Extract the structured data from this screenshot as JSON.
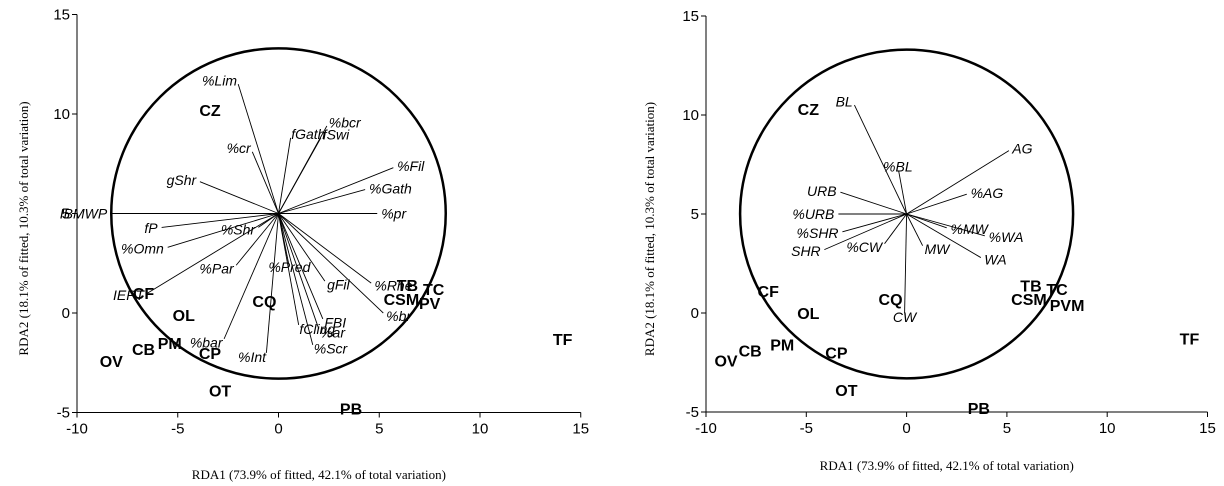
{
  "chart_data": [
    {
      "type": "scatter",
      "xlabel": "RDA1 (73.9% of fitted, 42.1% of total variation)",
      "ylabel": "RDA2 (18.1% of fitted, 10.3% of total variation)",
      "xlim": [
        -10,
        15
      ],
      "ylim": [
        -5,
        15
      ],
      "xticks": [
        "-10",
        "-5",
        "0",
        "5",
        "10",
        "15"
      ],
      "yticks": [
        "-5",
        "0",
        "5",
        "10",
        "15"
      ],
      "circle": {
        "cx": 0,
        "cy": 5,
        "r": 8.3
      },
      "sites": [
        {
          "label": "CZ",
          "x": -3.4,
          "y": 10.2
        },
        {
          "label": "CF",
          "x": -6.7,
          "y": 1.0
        },
        {
          "label": "OL",
          "x": -4.7,
          "y": -0.1
        },
        {
          "label": "CQ",
          "x": -0.7,
          "y": 0.6
        },
        {
          "label": "CB",
          "x": -6.7,
          "y": -1.8
        },
        {
          "label": "PM",
          "x": -5.4,
          "y": -1.5
        },
        {
          "label": "OV",
          "x": -8.3,
          "y": -2.4
        },
        {
          "label": "CP",
          "x": -3.4,
          "y": -2.0
        },
        {
          "label": "OT",
          "x": -2.9,
          "y": -3.9
        },
        {
          "label": "PB",
          "x": 3.6,
          "y": -4.8
        },
        {
          "label": "TB",
          "x": 6.4,
          "y": 1.4
        },
        {
          "label": "TC",
          "x": 7.7,
          "y": 1.2
        },
        {
          "label": "CSM",
          "x": 6.1,
          "y": 0.7
        },
        {
          "label": "PV",
          "x": 7.5,
          "y": 0.5
        },
        {
          "label": "TF",
          "x": 14.1,
          "y": -1.3
        }
      ],
      "vectors": [
        {
          "label": "%Lim",
          "x": -2.0,
          "y": 11.5
        },
        {
          "label": "%bcr",
          "x": 2.4,
          "y": 9.4
        },
        {
          "label": "fGath",
          "x": 0.6,
          "y": 8.8
        },
        {
          "label": "fSwi",
          "x": 2.1,
          "y": 8.8
        },
        {
          "label": "%cr",
          "x": -1.3,
          "y": 8.1
        },
        {
          "label": "%Fil",
          "x": 5.7,
          "y": 7.3
        },
        {
          "label": "%Gath",
          "x": 4.3,
          "y": 6.2
        },
        {
          "label": "gShr",
          "x": -3.9,
          "y": 6.6
        },
        {
          "label": "IBMWP",
          "x": -8.3,
          "y": 5.0
        },
        {
          "label": "%pr",
          "x": 4.9,
          "y": 5.0
        },
        {
          "label": "fP",
          "x": -5.8,
          "y": 4.3
        },
        {
          "label": "%Shr",
          "x": -1.0,
          "y": 4.3
        },
        {
          "label": "%Omn",
          "x": -5.5,
          "y": 3.3
        },
        {
          "label": "%Pred",
          "x": 0.5,
          "y": 2.5
        },
        {
          "label": "%Par",
          "x": -2.1,
          "y": 2.4
        },
        {
          "label": "gFil",
          "x": 2.3,
          "y": 1.6
        },
        {
          "label": "%Rhe",
          "x": 4.6,
          "y": 1.5
        },
        {
          "label": "IEPT",
          "x": -6.5,
          "y": 1.0
        },
        {
          "label": "%br",
          "x": 5.2,
          "y": 0.0
        },
        {
          "label": "FBI",
          "x": 2.2,
          "y": -0.3
        },
        {
          "label": "fCling",
          "x": 1.0,
          "y": -0.6
        },
        {
          "label": "%ar",
          "x": 2.0,
          "y": -0.8
        },
        {
          "label": "%Scr",
          "x": 1.7,
          "y": -1.6
        },
        {
          "label": "%bar",
          "x": -2.7,
          "y": -1.3
        },
        {
          "label": "%Int",
          "x": -0.6,
          "y": -2.0
        }
      ]
    },
    {
      "type": "scatter",
      "xlabel": "RDA1 (73.9% of fitted, 42.1% of total variation)",
      "ylabel": "RDA2 (18.1% of fitted, 10.3% of total variation)",
      "xlim": [
        -10,
        15
      ],
      "ylim": [
        -5,
        15
      ],
      "xticks": [
        "-10",
        "-5",
        "0",
        "5",
        "10",
        "15"
      ],
      "yticks": [
        "-5",
        "0",
        "5",
        "10",
        "15"
      ],
      "circle": {
        "cx": 0,
        "cy": 5,
        "r": 8.3
      },
      "sites": [
        {
          "label": "CZ",
          "x": -4.9,
          "y": 10.3
        },
        {
          "label": "CF",
          "x": -6.9,
          "y": 1.1
        },
        {
          "label": "OL",
          "x": -4.9,
          "y": 0.0
        },
        {
          "label": "CQ",
          "x": -0.8,
          "y": 0.7
        },
        {
          "label": "CB",
          "x": -7.8,
          "y": -1.9
        },
        {
          "label": "PM",
          "x": -6.2,
          "y": -1.6
        },
        {
          "label": "OV",
          "x": -9.0,
          "y": -2.4
        },
        {
          "label": "CP",
          "x": -3.5,
          "y": -2.0
        },
        {
          "label": "OT",
          "x": -3.0,
          "y": -3.9
        },
        {
          "label": "PB",
          "x": 3.6,
          "y": -4.8
        },
        {
          "label": "TB",
          "x": 6.2,
          "y": 1.4
        },
        {
          "label": "TC",
          "x": 7.5,
          "y": 1.2
        },
        {
          "label": "CSM",
          "x": 6.1,
          "y": 0.7
        },
        {
          "label": "PVM",
          "x": 8.0,
          "y": 0.4
        },
        {
          "label": "TF",
          "x": 14.1,
          "y": -1.3
        }
      ],
      "vectors": [
        {
          "label": "BL",
          "x": -2.6,
          "y": 10.5
        },
        {
          "label": "AG",
          "x": 5.1,
          "y": 8.2
        },
        {
          "label": "%BL",
          "x": -0.4,
          "y": 7.2
        },
        {
          "label": "URB",
          "x": -3.3,
          "y": 6.1
        },
        {
          "label": "%AG",
          "x": 3.0,
          "y": 6.0
        },
        {
          "label": "%URB",
          "x": -3.4,
          "y": 5.0
        },
        {
          "label": "%SHR",
          "x": -3.2,
          "y": 4.1
        },
        {
          "label": "%MW",
          "x": 2.0,
          "y": 4.3
        },
        {
          "label": "%WA",
          "x": 3.9,
          "y": 3.9
        },
        {
          "label": "SHR",
          "x": -4.1,
          "y": 3.2
        },
        {
          "label": "%CW",
          "x": -1.1,
          "y": 3.5
        },
        {
          "label": "MW",
          "x": 0.8,
          "y": 3.4
        },
        {
          "label": "WA",
          "x": 3.7,
          "y": 2.8
        },
        {
          "label": "CW",
          "x": -0.1,
          "y": 0.0
        }
      ]
    }
  ]
}
